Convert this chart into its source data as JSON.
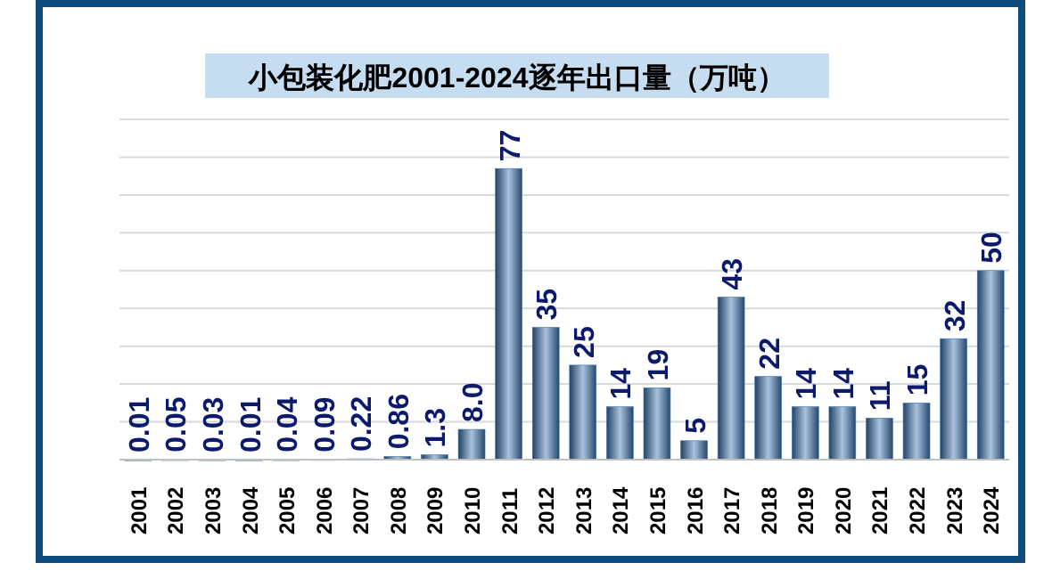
{
  "chart_data": {
    "type": "bar",
    "title": "小包装化肥2001-2024逐年出口量（万吨）",
    "categories": [
      "2001",
      "2002",
      "2003",
      "2004",
      "2005",
      "2006",
      "2007",
      "2008",
      "2009",
      "2010",
      "2011",
      "2012",
      "2013",
      "2014",
      "2015",
      "2016",
      "2017",
      "2018",
      "2019",
      "2020",
      "2021",
      "2022",
      "2023",
      "2024"
    ],
    "values": [
      0.01,
      0.05,
      0.03,
      0.01,
      0.04,
      0.09,
      0.22,
      0.86,
      1.3,
      8.0,
      77,
      35,
      25,
      14,
      19,
      5,
      43,
      22,
      14,
      14,
      11,
      15,
      32,
      50
    ],
    "value_labels": [
      "0.01",
      "0.05",
      "0.03",
      "0.01",
      "0.04",
      "0.09",
      "0.22",
      "0.86",
      "1.3",
      "8.0",
      "77",
      "35",
      "25",
      "14",
      "19",
      "5",
      "43",
      "22",
      "14",
      "14",
      "11",
      "15",
      "32",
      "50"
    ],
    "color": "#3f78b5",
    "ylim": [
      0,
      90
    ],
    "yticks": [
      {
        "value": 10,
        "label": null
      },
      {
        "value": 20,
        "label": null
      },
      {
        "value": 30,
        "label": null
      },
      {
        "value": 40,
        "label": null
      },
      {
        "value": 50,
        "label": null
      },
      {
        "value": 60,
        "label": null
      },
      {
        "value": 70,
        "label": null
      },
      {
        "value": 80,
        "label": null
      },
      {
        "value": 90,
        "label": null
      }
    ],
    "tick_labels": "x",
    "grid": "y"
  }
}
